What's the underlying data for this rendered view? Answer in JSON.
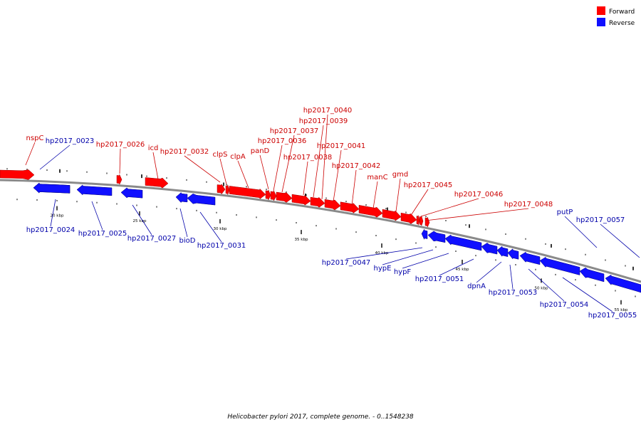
{
  "legend": {
    "forward": {
      "label": "Forward",
      "color": "#ff0000"
    },
    "reverse": {
      "label": "Reverse",
      "color": "#1010ff"
    }
  },
  "caption": "Helicobacter pylori 2017, complete genome. - 0..1548238",
  "colors": {
    "forward_label": "#cc0000",
    "reverse_label": "#0000aa",
    "forward_fill": "#ff0000",
    "reverse_fill": "#1010ff",
    "backbone": "#8a8a8a"
  },
  "scale": {
    "major_ticks": [
      {
        "kbp": 20,
        "label": "20 kbp"
      },
      {
        "kbp": 25,
        "label": "25 kbp"
      },
      {
        "kbp": 30,
        "label": "30 kbp"
      },
      {
        "kbp": 35,
        "label": "35 kbp"
      },
      {
        "kbp": 40,
        "label": "40 kbp"
      },
      {
        "kbp": 45,
        "label": "45 kbp"
      },
      {
        "kbp": 50,
        "label": "50 kbp"
      },
      {
        "kbp": 55,
        "label": "55 kbp"
      }
    ]
  },
  "features": {
    "forward": [
      {
        "name": "nspC"
      },
      {
        "name": "hp2017_0026"
      },
      {
        "name": "icd"
      },
      {
        "name": "hp2017_0032"
      },
      {
        "name": "clpS"
      },
      {
        "name": "clpA"
      },
      {
        "name": "panD"
      },
      {
        "name": "hp2017_0036"
      },
      {
        "name": "hp2017_0037"
      },
      {
        "name": "hp2017_0038"
      },
      {
        "name": "hp2017_0039"
      },
      {
        "name": "hp2017_0040"
      },
      {
        "name": "hp2017_0041"
      },
      {
        "name": "hp2017_0042"
      },
      {
        "name": "manC"
      },
      {
        "name": "gmd"
      },
      {
        "name": "hp2017_0045"
      },
      {
        "name": "hp2017_0046"
      },
      {
        "name": "hp2017_0048"
      }
    ],
    "reverse": [
      {
        "name": "hp2017_0023"
      },
      {
        "name": "hp2017_0024"
      },
      {
        "name": "hp2017_0025"
      },
      {
        "name": "hp2017_0027"
      },
      {
        "name": "bioD"
      },
      {
        "name": "hp2017_0031"
      },
      {
        "name": "hp2017_0047"
      },
      {
        "name": "hypE"
      },
      {
        "name": "hypF"
      },
      {
        "name": "hp2017_0051"
      },
      {
        "name": "dpnA"
      },
      {
        "name": "hp2017_0053"
      },
      {
        "name": "hp2017_0054"
      },
      {
        "name": "hp2017_0055"
      },
      {
        "name": "putP"
      },
      {
        "name": "hp2017_0057"
      }
    ]
  }
}
